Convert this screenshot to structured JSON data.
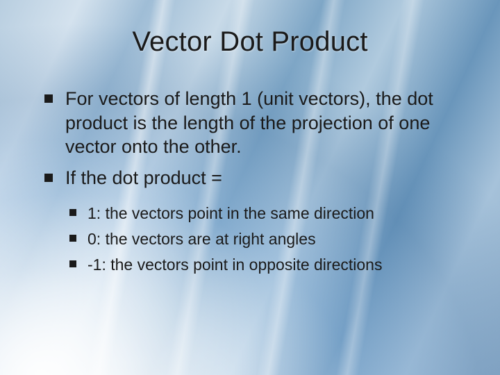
{
  "colors": {
    "text": "#1a1a1a",
    "bullet": "#1a1a1a",
    "bg_light": "#d4e2ee",
    "bg_mid": "#9fbdd6",
    "bg_dark": "#6a96bb",
    "streak": "#ffffff"
  },
  "typography": {
    "family": "Verdana",
    "title_size_pt": 40,
    "body_size_pt": 27,
    "sub_size_pt": 23
  },
  "title": "Vector Dot Product",
  "bullets": [
    {
      "text": "For vectors of length 1 (unit vectors), the dot product is the length of the projection of one vector onto the other."
    },
    {
      "text": "If the dot product =",
      "children": [
        "1: the vectors point in the same direction",
        "0: the vectors are at right angles",
        "-1: the vectors point in opposite directions"
      ]
    }
  ]
}
